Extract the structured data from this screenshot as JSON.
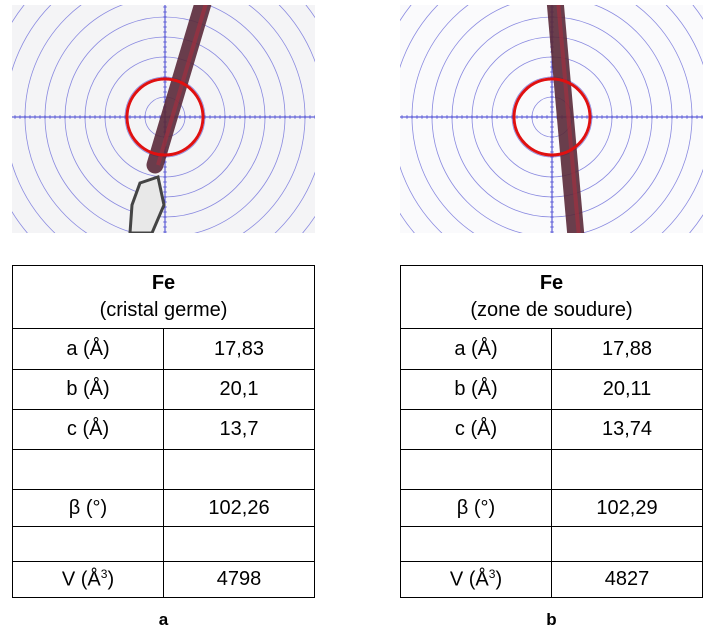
{
  "panels": [
    {
      "title": "Fe",
      "subtitle": "(cristal germe)",
      "rows": [
        [
          "a (Å)",
          "17,83"
        ],
        [
          "b (Å)",
          "20,1"
        ],
        [
          "c (Å)",
          "13,7"
        ],
        [
          "β (°)",
          "102,26"
        ]
      ],
      "volume": {
        "label": "V (Å",
        "sup": "3",
        "tail": ")",
        "value": "4798"
      },
      "caption": "a"
    },
    {
      "title": "Fe",
      "subtitle": "(zone de soudure)",
      "rows": [
        [
          "a (Å)",
          "17,88"
        ],
        [
          "b (Å)",
          "20,11"
        ],
        [
          "c (Å)",
          "13,74"
        ],
        [
          "β (°)",
          "102,29"
        ]
      ],
      "volume": {
        "label": "V (Å",
        "sup": "3",
        "tail": ")",
        "value": "4827"
      },
      "caption": "b"
    }
  ]
}
